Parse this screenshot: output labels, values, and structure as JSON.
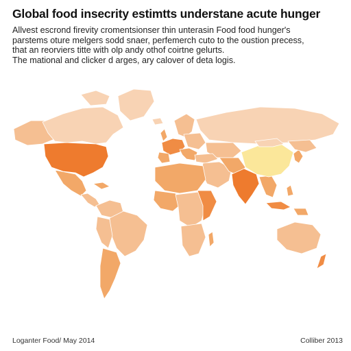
{
  "title": "Global food insecrity estimtts understane acute hunger",
  "subtitle_lines": [
    "Allvest escrond firevity cromentsionser thin unterasin Food food hunger's",
    "parstems oture melgers sodd snaer, perfemerch cuto to the oustion precess,",
    "that an reorviers titte with olp andy othof coirtne gelurts.",
    "The mational and clicker d arges, ary calover of deta logis."
  ],
  "footer": {
    "source": "Loganter Food/ May 2014",
    "credit": "Colliber 2013"
  },
  "colors": {
    "very_low": "#f8d3b4",
    "low": "#f5bf92",
    "moderate": "#f2a868",
    "high": "#f08c44",
    "severe": "#ee7b2e",
    "highlight": "#fbe79a"
  }
}
